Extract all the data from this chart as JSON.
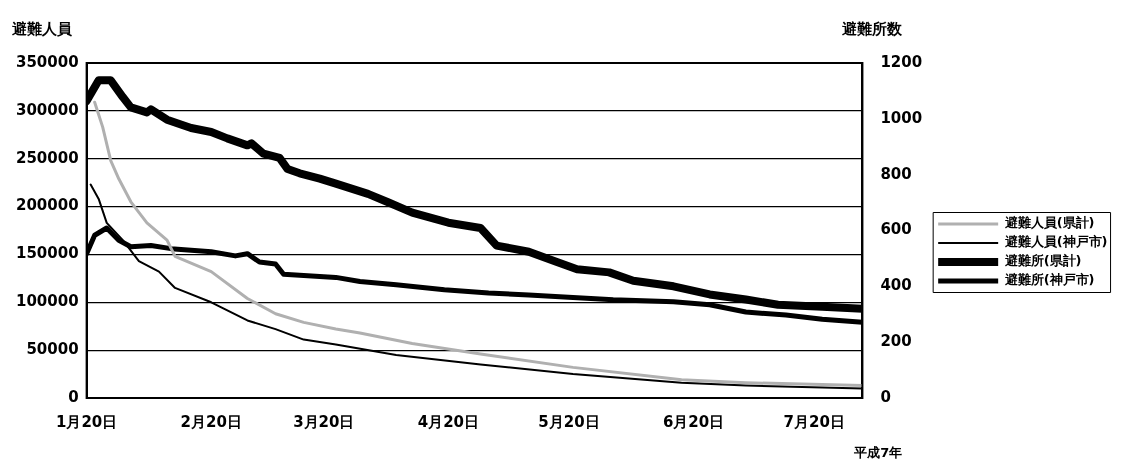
{
  "chart_data": {
    "type": "line",
    "ylabel": "避難人員",
    "y2label": "避難所数",
    "annotations": [
      "平成7年"
    ],
    "xlim": [
      "--01-20",
      "--08-01"
    ],
    "xticks": [
      {
        "value": "--01-20",
        "label": "1月20日"
      },
      {
        "value": "--02-20",
        "label": "2月20日"
      },
      {
        "value": "--03-20",
        "label": "3月20日"
      },
      {
        "value": "--04-20",
        "label": "4月20日"
      },
      {
        "value": "--05-20",
        "label": "5月20日"
      },
      {
        "value": "--06-20",
        "label": "6月20日"
      },
      {
        "value": "--07-20",
        "label": "7月20日"
      }
    ],
    "ylim": [
      0,
      350000
    ],
    "yticks": [
      0,
      50000,
      100000,
      150000,
      200000,
      250000,
      300000,
      350000
    ],
    "y2lim": [
      0,
      1200
    ],
    "y2ticks": [
      0,
      200,
      400,
      600,
      800,
      1000,
      1200
    ],
    "grid": "y",
    "legend": "right",
    "marker": "none",
    "line_style": "solid",
    "series": [
      {
        "name": "避難人員(県計)",
        "color": "#b0b0b0",
        "x": [
          "--01-22",
          "--01-24",
          "--01-26",
          "--01-28",
          "--01-31",
          "--02-04",
          "--02-09",
          "--02-11",
          "--02-20",
          "--03-01",
          "--03-08",
          "--03-15",
          "--03-23",
          "--03-29",
          "--04-11",
          "--04-28",
          "--05-21",
          "--06-17",
          "--07-03",
          "--08-01"
        ],
        "values": [
          309000,
          283000,
          248000,
          229000,
          205000,
          183000,
          165000,
          148000,
          132000,
          104000,
          88000,
          79000,
          72000,
          68000,
          57000,
          46000,
          32000,
          19000,
          16000,
          13000
        ]
      },
      {
        "name": "避難人員(神戸市)",
        "color": "#000000",
        "x": [
          "--01-21",
          "--01-23",
          "--01-25",
          "--01-29",
          "--02-02",
          "--02-07",
          "--02-11",
          "--02-20",
          "--03-01",
          "--03-08",
          "--03-15",
          "--03-23",
          "--04-07",
          "--04-28",
          "--05-21",
          "--06-17",
          "--07-03",
          "--08-01"
        ],
        "values": [
          223000,
          208000,
          183000,
          165000,
          143000,
          132000,
          115000,
          100000,
          81000,
          72000,
          61000,
          56000,
          45000,
          35000,
          25000,
          16000,
          13000,
          10000
        ]
      },
      {
        "name": "避難所(県計)",
        "color": "#000000",
        "axis": "y2",
        "x": [
          "--01-20",
          "--01-23",
          "--01-26",
          "--01-29",
          "--01-31",
          "--02-04",
          "--02-05",
          "--02-09",
          "--02-15",
          "--02-20",
          "--02-24",
          "--03-01",
          "--03-02",
          "--03-05",
          "--03-09",
          "--03-11",
          "--03-14",
          "--03-19",
          "--03-23",
          "--03-31",
          "--04-05",
          "--04-11",
          "--04-20",
          "--04-28",
          "--05-02",
          "--05-10",
          "--05-17",
          "--05-22",
          "--05-30",
          "--06-05",
          "--06-15",
          "--06-24",
          "--07-03",
          "--07-11",
          "--07-22",
          "--08-01"
        ],
        "values": [
          1064,
          1138,
          1138,
          1078,
          1041,
          1023,
          1034,
          997,
          967,
          953,
          930,
          905,
          912,
          875,
          860,
          820,
          805,
          786,
          768,
          731,
          701,
          664,
          628,
          609,
          546,
          524,
          487,
          461,
          450,
          420,
          400,
          371,
          353,
          334,
          327,
          320
        ]
      },
      {
        "name": "避難所(神戸市)",
        "color": "#000000",
        "axis": "y2",
        "x": [
          "--01-20",
          "--01-22",
          "--01-25",
          "--01-28",
          "--01-31",
          "--02-05",
          "--02-10",
          "--02-20",
          "--02-26",
          "--03-01",
          "--03-04",
          "--03-08",
          "--03-10",
          "--03-23",
          "--03-29",
          "--04-07",
          "--04-19",
          "--04-30",
          "--05-10",
          "--05-21",
          "--05-31",
          "--06-15",
          "--06-24",
          "--07-03",
          "--07-13",
          "--07-22",
          "--08-01"
        ],
        "values": [
          517,
          583,
          609,
          565,
          542,
          546,
          535,
          524,
          509,
          517,
          487,
          480,
          443,
          432,
          417,
          406,
          388,
          376,
          369,
          360,
          352,
          345,
          334,
          308,
          297,
          282,
          271
        ]
      }
    ]
  }
}
